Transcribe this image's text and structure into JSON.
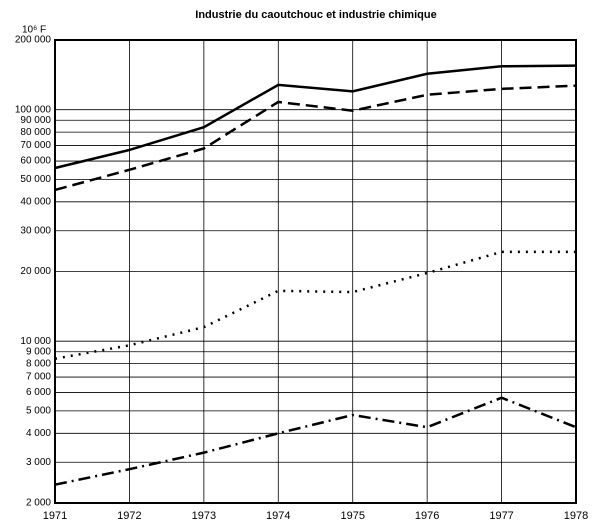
{
  "chart_data": {
    "type": "line",
    "title": "Industrie du caoutchouc et industrie chimique",
    "y_label": "10⁶ F",
    "log_y": true,
    "grid": true,
    "xlim": [
      1971,
      1978
    ],
    "xticks": [
      1971,
      1972,
      1973,
      1974,
      1975,
      1976,
      1977,
      1978
    ],
    "ylim": [
      2000,
      200000
    ],
    "yticks": [
      {
        "value": 2000,
        "label": "2 000"
      },
      {
        "value": 3000,
        "label": "3 000"
      },
      {
        "value": 4000,
        "label": "4 000"
      },
      {
        "value": 5000,
        "label": "5 000"
      },
      {
        "value": 6000,
        "label": "6 000"
      },
      {
        "value": 7000,
        "label": "7 000"
      },
      {
        "value": 8000,
        "label": "8 000"
      },
      {
        "value": 9000,
        "label": "9 000"
      },
      {
        "value": 10000,
        "label": "10 000"
      },
      {
        "value": 20000,
        "label": "20 000"
      },
      {
        "value": 30000,
        "label": "30 000"
      },
      {
        "value": 40000,
        "label": "40 000"
      },
      {
        "value": 50000,
        "label": "50 000"
      },
      {
        "value": 60000,
        "label": "60 000"
      },
      {
        "value": 70000,
        "label": "70 000"
      },
      {
        "value": 80000,
        "label": "80 000"
      },
      {
        "value": 90000,
        "label": "90 000"
      },
      {
        "value": 100000,
        "label": "100 000"
      },
      {
        "value": 200000,
        "label": "200 000"
      }
    ],
    "x": [
      1971,
      1972,
      1973,
      1974,
      1975,
      1976,
      1977,
      1978
    ],
    "series": [
      {
        "color": "#000000",
        "style": "solid",
        "values": [
          56000,
          67000,
          84000,
          128000,
          120000,
          143000,
          154000,
          155000
        ]
      },
      {
        "color": "#000000",
        "style": "dashed",
        "values": [
          45000,
          55000,
          68000,
          108000,
          99000,
          116000,
          123000,
          127000
        ]
      },
      {
        "color": "#000000",
        "style": "dotted",
        "values": [
          8400,
          9600,
          11500,
          16500,
          16300,
          19700,
          24300,
          24300
        ]
      },
      {
        "color": "#000000",
        "style": "dashdot",
        "values": [
          2400,
          2800,
          3300,
          4000,
          4800,
          4250,
          5700,
          4250
        ]
      }
    ]
  }
}
